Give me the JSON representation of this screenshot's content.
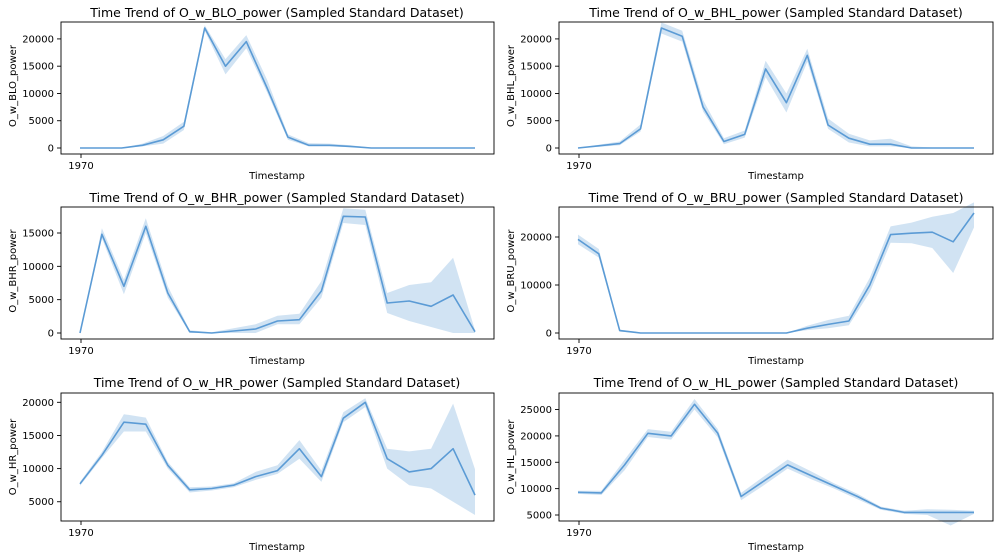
{
  "chart_data": [
    {
      "type": "line",
      "title": "Time Trend of O_w_BLO_power (Sampled Standard Dataset)",
      "xlabel": "Timestamp",
      "ylabel": "O_w_BLO_power",
      "x_tick_labels": [
        "1970"
      ],
      "ylim": [
        0,
        22000
      ],
      "yticks": [
        0,
        5000,
        10000,
        15000,
        20000
      ],
      "grid": false,
      "color": "#5b9bd5",
      "y": [
        0,
        0,
        0,
        500,
        1500,
        4000,
        22000,
        15000,
        19500,
        11000,
        2000,
        500,
        500,
        300,
        0,
        0,
        0,
        0,
        0,
        0
      ],
      "lo": [
        0,
        0,
        0,
        300,
        800,
        3300,
        21500,
        13500,
        18300,
        10200,
        1500,
        300,
        300,
        150,
        0,
        0,
        0,
        0,
        0,
        0
      ],
      "hi": [
        0,
        0,
        0,
        800,
        2200,
        4800,
        22500,
        16300,
        20700,
        12500,
        2500,
        900,
        800,
        500,
        100,
        50,
        50,
        50,
        50,
        50
      ]
    },
    {
      "type": "line",
      "title": "Time Trend of O_w_BHL_power (Sampled Standard Dataset)",
      "xlabel": "Timestamp",
      "ylabel": "O_w_BHL_power",
      "x_tick_labels": [
        "1970"
      ],
      "ylim": [
        0,
        22000
      ],
      "yticks": [
        0,
        5000,
        10000,
        15000,
        20000
      ],
      "grid": false,
      "color": "#5b9bd5",
      "y": [
        0,
        400,
        800,
        3500,
        22000,
        20500,
        7500,
        1200,
        2500,
        14500,
        8300,
        17000,
        4200,
        1800,
        700,
        700,
        0,
        0,
        0,
        0
      ],
      "lo": [
        0,
        200,
        500,
        3000,
        21000,
        19500,
        6700,
        700,
        1900,
        13000,
        6500,
        15800,
        3500,
        1000,
        300,
        300,
        0,
        0,
        0,
        0
      ],
      "hi": [
        0,
        600,
        1200,
        4300,
        23000,
        21500,
        8800,
        1800,
        3200,
        16000,
        10000,
        18200,
        5400,
        2600,
        1400,
        1700,
        300,
        100,
        100,
        100
      ]
    },
    {
      "type": "line",
      "title": "Time Trend of O_w_BHR_power (Sampled Standard Dataset)",
      "xlabel": "Timestamp",
      "ylabel": "O_w_BHR_power",
      "x_tick_labels": [
        "1970"
      ],
      "ylim": [
        0,
        18000
      ],
      "yticks": [
        0,
        5000,
        10000,
        15000
      ],
      "grid": false,
      "color": "#5b9bd5",
      "y": [
        0,
        14800,
        7000,
        16000,
        6000,
        200,
        0,
        300,
        600,
        1800,
        2000,
        6300,
        17500,
        17400,
        4500,
        4800,
        4000,
        5700,
        200
      ],
      "lo": [
        0,
        14200,
        5800,
        15000,
        5300,
        0,
        0,
        0,
        0,
        1300,
        1300,
        5300,
        16500,
        16200,
        3000,
        1800,
        900,
        0,
        0
      ],
      "hi": [
        0,
        15700,
        8000,
        17200,
        7000,
        400,
        100,
        700,
        1300,
        2600,
        2900,
        7800,
        18700,
        18500,
        6000,
        7200,
        7600,
        11300,
        400
      ]
    },
    {
      "type": "line",
      "title": "Time Trend of O_w_BRU_power (Sampled Standard Dataset)",
      "xlabel": "Timestamp",
      "ylabel": "O_w_BRU_power",
      "x_tick_labels": [
        "1970"
      ],
      "ylim": [
        0,
        25000
      ],
      "yticks": [
        0,
        10000,
        20000
      ],
      "grid": false,
      "color": "#5b9bd5",
      "y": [
        19500,
        16500,
        500,
        0,
        0,
        0,
        0,
        0,
        0,
        0,
        0,
        1000,
        1800,
        2500,
        10000,
        20500,
        20800,
        21000,
        19000,
        25000
      ],
      "lo": [
        18500,
        15700,
        300,
        0,
        0,
        0,
        0,
        0,
        0,
        0,
        0,
        600,
        1000,
        1600,
        8500,
        18800,
        18700,
        17700,
        12500,
        22000
      ],
      "hi": [
        20500,
        17500,
        700,
        100,
        0,
        0,
        0,
        0,
        0,
        0,
        0,
        1500,
        2700,
        3600,
        11500,
        22200,
        23000,
        24200,
        25000,
        27200
      ]
    },
    {
      "type": "line",
      "title": "Time Trend of O_w_HR_power (Sampled Standard Dataset)",
      "xlabel": "Timestamp",
      "ylabel": "O_w_HR_power",
      "x_tick_labels": [
        "1970"
      ],
      "ylim": [
        3000,
        20500
      ],
      "yticks": [
        5000,
        10000,
        15000,
        20000
      ],
      "grid": false,
      "color": "#5b9bd5",
      "y": [
        7700,
        12000,
        17000,
        16700,
        10500,
        6800,
        7000,
        7500,
        8800,
        9700,
        13000,
        8800,
        17600,
        20000,
        11500,
        9500,
        10000,
        13000,
        6000
      ],
      "lo": [
        7400,
        11600,
        15600,
        15600,
        10000,
        6400,
        6700,
        7200,
        8300,
        9200,
        11500,
        8000,
        17000,
        19300,
        10000,
        7500,
        7000,
        5000,
        3000
      ],
      "hi": [
        8000,
        12500,
        18200,
        17700,
        11000,
        7200,
        7300,
        7800,
        9500,
        10500,
        14300,
        9700,
        18500,
        20600,
        13000,
        12600,
        13000,
        19800,
        9900
      ]
    },
    {
      "type": "line",
      "title": "Time Trend of O_w_HL_power (Sampled Standard Dataset)",
      "xlabel": "Timestamp",
      "ylabel": "O_w_HL_power",
      "x_tick_labels": [
        "1970"
      ],
      "ylim": [
        5000,
        27000
      ],
      "yticks": [
        5000,
        10000,
        15000,
        20000,
        25000
      ],
      "grid": false,
      "color": "#5b9bd5",
      "y": [
        9300,
        9200,
        14500,
        20500,
        20000,
        26000,
        20500,
        8500,
        11500,
        14500,
        12500,
        10500,
        8500,
        6300,
        5500,
        5500,
        5500,
        5500
      ],
      "lo": [
        9000,
        8800,
        13500,
        19800,
        19300,
        25000,
        19700,
        7800,
        10700,
        13800,
        11800,
        10000,
        8000,
        6000,
        5200,
        5000,
        3000,
        5200
      ],
      "hi": [
        9600,
        9600,
        15500,
        21300,
        20800,
        27000,
        21300,
        9200,
        12400,
        15500,
        13300,
        11000,
        9000,
        6600,
        5800,
        6100,
        6000,
        5800
      ]
    }
  ]
}
